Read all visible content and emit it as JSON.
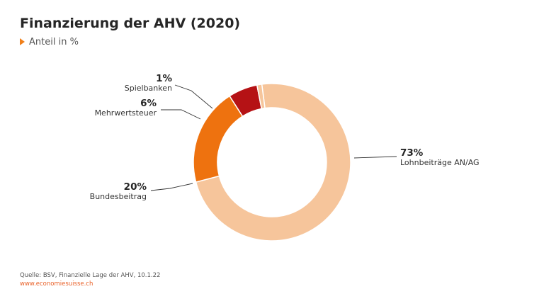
{
  "title": "Finanzierung der AHV (2020)",
  "subtitle": "Anteil in %",
  "footer": {
    "source": "Quelle: BSV, Finanzielle Lage der AHV, 10.1.22",
    "url": "www.economiesuisse.ch"
  },
  "chart_data": {
    "type": "pie",
    "donut": true,
    "title": "Finanzierung der AHV (2020)",
    "subtitle": "Anteil in %",
    "series": [
      {
        "name": "Lohnbeiträge AN/AG",
        "label": "73%",
        "value": 73,
        "color": "#f6c59b"
      },
      {
        "name": "Bundesbeitrag",
        "label": "20%",
        "value": 20,
        "color": "#ee720f"
      },
      {
        "name": "Mehrwertsteuer",
        "label": "6%",
        "value": 6,
        "color": "#b51215"
      },
      {
        "name": "Spielbanken",
        "label": "1%",
        "value": 1,
        "color": "#f6c59b"
      }
    ]
  }
}
